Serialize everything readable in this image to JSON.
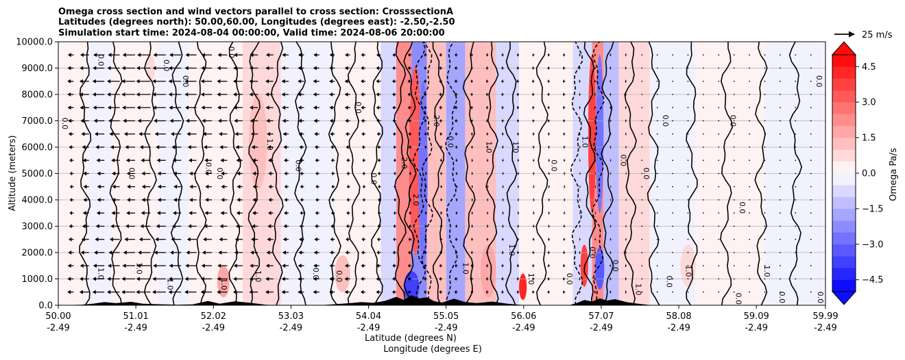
{
  "chart_data": {
    "type": "heatmap",
    "title_lines": [
      "Omega cross section and wind vectors parallel to cross section: CrosssectionA",
      "Latitudes (degrees north): 50.00,60.00, Longitudes (degrees east): -2.50,-2.50",
      "Simulation start time: 2024-08-04 00:00:00, Valid time: 2024-08-06 20:00:00"
    ],
    "xlabel_lines": [
      "Latitude (degrees N)",
      "Longitude (degrees E)"
    ],
    "ylabel": "Altitude (meters)",
    "colorbar_label": "Omega Pa/s",
    "quiver_key_label": "25 m/s",
    "x_range": [
      50.0,
      59.99
    ],
    "ylim": [
      0,
      10000
    ],
    "grid": "horizontal",
    "x_ticks": [
      {
        "lat": "50.00",
        "lon": "-2.49",
        "v": 50.0
      },
      {
        "lat": "51.01",
        "lon": "-2.49",
        "v": 51.01
      },
      {
        "lat": "52.02",
        "lon": "-2.49",
        "v": 52.02
      },
      {
        "lat": "53.03",
        "lon": "-2.49",
        "v": 53.03
      },
      {
        "lat": "54.04",
        "lon": "-2.49",
        "v": 54.04
      },
      {
        "lat": "55.05",
        "lon": "-2.49",
        "v": 55.05
      },
      {
        "lat": "56.06",
        "lon": "-2.49",
        "v": 56.06
      },
      {
        "lat": "57.07",
        "lon": "-2.49",
        "v": 57.07
      },
      {
        "lat": "58.08",
        "lon": "-2.49",
        "v": 58.08
      },
      {
        "lat": "59.09",
        "lon": "-2.49",
        "v": 59.09
      },
      {
        "lat": "59.99",
        "lon": "-2.49",
        "v": 59.99
      }
    ],
    "y_ticks": [
      {
        "label": "0.0",
        "v": 0
      },
      {
        "label": "1000.0",
        "v": 1000
      },
      {
        "label": "2000.0",
        "v": 2000
      },
      {
        "label": "3000.0",
        "v": 3000
      },
      {
        "label": "4000.0",
        "v": 4000
      },
      {
        "label": "5000.0",
        "v": 5000
      },
      {
        "label": "6000.0",
        "v": 6000
      },
      {
        "label": "7000.0",
        "v": 7000
      },
      {
        "label": "8000.0",
        "v": 8000
      },
      {
        "label": "9000.0",
        "v": 9000
      },
      {
        "label": "10000.0",
        "v": 10000
      }
    ],
    "colorbar": {
      "vmin": -5.0,
      "vmax": 5.0,
      "cmap": "bwr",
      "ticks": [
        {
          "label": "−4.5",
          "v": -4.5
        },
        {
          "label": "−3.0",
          "v": -3.0
        },
        {
          "label": "−1.5",
          "v": -1.5
        },
        {
          "label": "0.0",
          "v": 0.0
        },
        {
          "label": "1.5",
          "v": 1.5
        },
        {
          "label": "3.0",
          "v": 3.0
        },
        {
          "label": "4.5",
          "v": 4.5
        }
      ]
    },
    "omega_bands": [
      {
        "x0": 50.0,
        "x1": 50.4,
        "omega": 0.1
      },
      {
        "x0": 50.4,
        "x1": 50.7,
        "omega": -0.2
      },
      {
        "x0": 50.7,
        "x1": 51.3,
        "omega": 0.2
      },
      {
        "x0": 51.3,
        "x1": 51.7,
        "omega": -0.3
      },
      {
        "x0": 51.7,
        "x1": 52.4,
        "omega": 0.3
      },
      {
        "x0": 52.4,
        "x1": 52.9,
        "omega": 0.6
      },
      {
        "x0": 52.9,
        "x1": 53.6,
        "omega": -0.2
      },
      {
        "x0": 53.6,
        "x1": 54.2,
        "omega": 0.2
      },
      {
        "x0": 54.2,
        "x1": 54.4,
        "omega": -0.8
      },
      {
        "x0": 54.4,
        "x1": 54.6,
        "omega": 2.0
      },
      {
        "x0": 54.6,
        "x1": 54.8,
        "omega": -2.2
      },
      {
        "x0": 54.8,
        "x1": 55.05,
        "omega": 1.4
      },
      {
        "x0": 55.05,
        "x1": 55.3,
        "omega": -1.6
      },
      {
        "x0": 55.3,
        "x1": 55.7,
        "omega": 1.0
      },
      {
        "x0": 55.7,
        "x1": 56.0,
        "omega": -0.6
      },
      {
        "x0": 56.0,
        "x1": 56.7,
        "omega": 0.4
      },
      {
        "x0": 56.7,
        "x1": 56.95,
        "omega": -0.6
      },
      {
        "x0": 56.95,
        "x1": 57.1,
        "omega": 2.2
      },
      {
        "x0": 57.1,
        "x1": 57.3,
        "omega": -1.2
      },
      {
        "x0": 57.3,
        "x1": 57.7,
        "omega": 0.5
      },
      {
        "x0": 57.7,
        "x1": 58.3,
        "omega": -0.3
      },
      {
        "x0": 58.3,
        "x1": 59.2,
        "omega": 0.2
      },
      {
        "x0": 59.2,
        "x1": 59.99,
        "omega": -0.1
      }
    ],
    "omega_blobs": [
      {
        "x": 52.6,
        "y": 6200,
        "rx": 0.12,
        "ry": 1800,
        "omega": 1.2
      },
      {
        "x": 51.2,
        "y": 9000,
        "rx": 0.06,
        "ry": 500,
        "omega": 0.9
      },
      {
        "x": 54.65,
        "y": 5500,
        "rx": 0.08,
        "ry": 3600,
        "omega": 3.0
      },
      {
        "x": 54.75,
        "y": 5000,
        "rx": 0.06,
        "ry": 3500,
        "omega": -3.0
      },
      {
        "x": 54.6,
        "y": 700,
        "rx": 0.1,
        "ry": 600,
        "omega": -4.0
      },
      {
        "x": 56.95,
        "y": 6500,
        "rx": 0.05,
        "ry": 3000,
        "omega": 3.5
      },
      {
        "x": 57.05,
        "y": 6500,
        "rx": 0.05,
        "ry": 3000,
        "omega": -3.0
      },
      {
        "x": 56.85,
        "y": 1500,
        "rx": 0.05,
        "ry": 800,
        "omega": 3.5
      },
      {
        "x": 57.05,
        "y": 1400,
        "rx": 0.06,
        "ry": 800,
        "omega": -3.5
      },
      {
        "x": 58.2,
        "y": 1500,
        "rx": 0.1,
        "ry": 800,
        "omega": 0.9
      },
      {
        "x": 53.7,
        "y": 1200,
        "rx": 0.1,
        "ry": 700,
        "omega": 1.2
      },
      {
        "x": 52.15,
        "y": 900,
        "rx": 0.08,
        "ry": 600,
        "omega": 1.5
      },
      {
        "x": 55.6,
        "y": 1300,
        "rx": 0.1,
        "ry": 1000,
        "omega": 1.6
      },
      {
        "x": 56.05,
        "y": 700,
        "rx": 0.05,
        "ry": 500,
        "omega": 4.0
      }
    ],
    "contours": [
      {
        "x": 50.35,
        "level": 0.0,
        "dashed": false
      },
      {
        "x": 50.75,
        "level": 0.0,
        "dashed": false
      },
      {
        "x": 51.2,
        "level": 0.0,
        "dashed": false
      },
      {
        "x": 51.55,
        "level": 0.0,
        "dashed": false
      },
      {
        "x": 51.85,
        "level": 0.0,
        "dashed": false
      },
      {
        "x": 52.3,
        "level": 0.0,
        "dashed": false
      },
      {
        "x": 52.55,
        "level": 1.0,
        "dashed": false
      },
      {
        "x": 52.85,
        "level": 0.0,
        "dashed": false
      },
      {
        "x": 53.15,
        "level": 0.0,
        "dashed": false
      },
      {
        "x": 53.6,
        "level": 0.0,
        "dashed": false
      },
      {
        "x": 53.85,
        "level": 0.0,
        "dashed": false
      },
      {
        "x": 54.15,
        "level": 0.0,
        "dashed": false
      },
      {
        "x": 54.45,
        "level": 1.0,
        "dashed": false
      },
      {
        "x": 54.58,
        "level": 2.0,
        "dashed": false
      },
      {
        "x": 54.7,
        "level": -1.0,
        "dashed": true
      },
      {
        "x": 54.8,
        "level": -2.0,
        "dashed": true
      },
      {
        "x": 54.95,
        "level": 2.0,
        "dashed": false
      },
      {
        "x": 55.12,
        "level": -1.0,
        "dashed": true
      },
      {
        "x": 55.35,
        "level": 1.0,
        "dashed": false
      },
      {
        "x": 55.65,
        "level": 1.0,
        "dashed": false
      },
      {
        "x": 55.9,
        "level": 0.0,
        "dashed": false
      },
      {
        "x": 56.3,
        "level": 0.0,
        "dashed": false
      },
      {
        "x": 56.75,
        "level": -1.0,
        "dashed": true
      },
      {
        "x": 56.92,
        "level": 1.0,
        "dashed": false
      },
      {
        "x": 57.03,
        "level": -2.0,
        "dashed": true
      },
      {
        "x": 57.15,
        "level": 1.0,
        "dashed": false
      },
      {
        "x": 57.45,
        "level": 0.0,
        "dashed": false
      },
      {
        "x": 57.75,
        "level": 0.0,
        "dashed": false
      },
      {
        "x": 58.25,
        "level": 0.0,
        "dashed": false
      },
      {
        "x": 58.7,
        "level": 0.0,
        "dashed": false
      },
      {
        "x": 59.15,
        "level": 0.0,
        "dashed": false
      },
      {
        "x": 59.6,
        "level": 0.0,
        "dashed": false
      }
    ],
    "contour_labels": [
      {
        "text": "0.0",
        "x": 50.08,
        "y": 6900
      },
      {
        "text": "0.0",
        "x": 50.55,
        "y": 9300
      },
      {
        "text": "0.0",
        "x": 50.95,
        "y": 5000
      },
      {
        "text": "0.0",
        "x": 51.4,
        "y": 9100
      },
      {
        "text": "0.0",
        "x": 51.65,
        "y": 8500
      },
      {
        "text": "0.0",
        "x": 51.95,
        "y": 5200
      },
      {
        "text": "0.0",
        "x": 52.1,
        "y": 5000
      },
      {
        "text": "0.0",
        "x": 52.25,
        "y": 9600
      },
      {
        "text": "1.0",
        "x": 52.75,
        "y": 6100
      },
      {
        "text": "0.0",
        "x": 53.12,
        "y": 5300
      },
      {
        "text": "0.0",
        "x": 53.9,
        "y": 7500
      },
      {
        "text": "0.0",
        "x": 54.1,
        "y": 4800
      },
      {
        "text": "2.0",
        "x": 54.5,
        "y": 5400
      },
      {
        "text": "2.0",
        "x": 54.65,
        "y": 4000
      },
      {
        "text": "2.0",
        "x": 54.92,
        "y": 7000
      },
      {
        "text": "0.0",
        "x": 55.1,
        "y": 6200
      },
      {
        "text": "1.0",
        "x": 55.6,
        "y": 6000
      },
      {
        "text": "1.0",
        "x": 55.95,
        "y": 6000
      },
      {
        "text": "0.0",
        "x": 56.45,
        "y": 5300
      },
      {
        "text": "1.0",
        "x": 56.85,
        "y": 6200
      },
      {
        "text": "0.0",
        "x": 57.35,
        "y": 5500
      },
      {
        "text": "0.0",
        "x": 57.65,
        "y": 5000
      },
      {
        "text": "0.0",
        "x": 57.9,
        "y": 7000
      },
      {
        "text": "0.0",
        "x": 58.78,
        "y": 7000
      },
      {
        "text": "0.0",
        "x": 59.9,
        "y": 8500
      },
      {
        "text": "0.0",
        "x": 58.9,
        "y": 3700
      },
      {
        "text": "1.0",
        "x": 50.55,
        "y": 1200
      },
      {
        "text": "1.0",
        "x": 51.05,
        "y": 1400
      },
      {
        "text": "1.0",
        "x": 51.45,
        "y": 800
      },
      {
        "text": "1.0",
        "x": 52.15,
        "y": 800
      },
      {
        "text": "1.0",
        "x": 52.6,
        "y": 1100
      },
      {
        "text": "0.0",
        "x": 53.35,
        "y": 1200
      },
      {
        "text": "0.0",
        "x": 53.65,
        "y": 1100
      },
      {
        "text": "1.0",
        "x": 55.3,
        "y": 1400
      },
      {
        "text": "1.0",
        "x": 55.9,
        "y": 2100
      },
      {
        "text": "1.0",
        "x": 56.15,
        "y": 1000
      },
      {
        "text": "0.0",
        "x": 56.65,
        "y": 1000
      },
      {
        "text": "0.0",
        "x": 57.25,
        "y": 1500
      },
      {
        "text": "1.0",
        "x": 57.55,
        "y": 600
      },
      {
        "text": "0.0",
        "x": 57.95,
        "y": 900
      },
      {
        "text": "1.0",
        "x": 58.2,
        "y": 1300
      },
      {
        "text": "1.0",
        "x": 59.22,
        "y": 1300
      },
      {
        "text": "0.0",
        "x": 59.42,
        "y": 300
      },
      {
        "text": "0.0",
        "x": 59.92,
        "y": 300
      },
      {
        "text": "0.0",
        "x": 58.85,
        "y": 250
      },
      {
        "text": "0.0",
        "x": 56.95,
        "y": 2000
      }
    ],
    "wind_vector_columns": [
      {
        "x": 50.0,
        "u": -2
      },
      {
        "x": 50.2,
        "u": -8
      },
      {
        "x": 50.4,
        "u": -12
      },
      {
        "x": 50.6,
        "u": -15
      },
      {
        "x": 50.8,
        "u": -16
      },
      {
        "x": 51.0,
        "u": -17
      },
      {
        "x": 51.2,
        "u": -18
      },
      {
        "x": 51.4,
        "u": -17
      },
      {
        "x": 51.6,
        "u": -16
      },
      {
        "x": 51.8,
        "u": -15
      },
      {
        "x": 52.0,
        "u": -14
      },
      {
        "x": 52.2,
        "u": -13
      },
      {
        "x": 52.4,
        "u": -12
      },
      {
        "x": 52.6,
        "u": -11
      },
      {
        "x": 52.8,
        "u": -10
      },
      {
        "x": 53.0,
        "u": -9
      },
      {
        "x": 53.2,
        "u": -8
      },
      {
        "x": 53.4,
        "u": -8
      },
      {
        "x": 53.6,
        "u": -7
      },
      {
        "x": 53.8,
        "u": -7
      },
      {
        "x": 54.0,
        "u": -6
      },
      {
        "x": 54.2,
        "u": -6
      },
      {
        "x": 54.4,
        "u": -5
      },
      {
        "x": 54.6,
        "u": -5
      },
      {
        "x": 54.8,
        "u": -4
      },
      {
        "x": 55.0,
        "u": -4
      },
      {
        "x": 55.2,
        "u": -4
      },
      {
        "x": 55.4,
        "u": -3
      },
      {
        "x": 55.6,
        "u": -3
      },
      {
        "x": 55.8,
        "u": -3
      },
      {
        "x": 56.0,
        "u": -3
      },
      {
        "x": 56.2,
        "u": -3
      },
      {
        "x": 56.4,
        "u": -3
      },
      {
        "x": 56.6,
        "u": -3
      },
      {
        "x": 56.8,
        "u": -2
      },
      {
        "x": 57.0,
        "u": -2
      },
      {
        "x": 57.2,
        "u": -2
      },
      {
        "x": 57.4,
        "u": -2
      },
      {
        "x": 57.6,
        "u": -1
      },
      {
        "x": 57.8,
        "u": -1
      },
      {
        "x": 58.0,
        "u": -1
      },
      {
        "x": 58.2,
        "u": -1
      },
      {
        "x": 58.4,
        "u": -1
      },
      {
        "x": 58.6,
        "u": 0
      },
      {
        "x": 58.8,
        "u": 0
      },
      {
        "x": 59.0,
        "u": 0
      },
      {
        "x": 59.2,
        "u": 0
      },
      {
        "x": 59.4,
        "u": 0
      },
      {
        "x": 59.6,
        "u": 0
      },
      {
        "x": 59.8,
        "u": 0
      }
    ],
    "wind_vector_levels": [
      500,
      1000,
      1500,
      2000,
      2500,
      3000,
      3500,
      4000,
      4500,
      5000,
      5500,
      6000,
      6500,
      7000,
      7500,
      8000,
      8500,
      9000,
      9500
    ],
    "quiver_key_speed": 25,
    "terrain": [
      {
        "x": 50.0,
        "h": 0
      },
      {
        "x": 50.3,
        "h": 20
      },
      {
        "x": 50.45,
        "h": 60
      },
      {
        "x": 50.6,
        "h": 120
      },
      {
        "x": 50.75,
        "h": 80
      },
      {
        "x": 50.95,
        "h": 130
      },
      {
        "x": 51.1,
        "h": 60
      },
      {
        "x": 51.3,
        "h": 40
      },
      {
        "x": 51.55,
        "h": 20
      },
      {
        "x": 51.75,
        "h": 30
      },
      {
        "x": 51.95,
        "h": 160
      },
      {
        "x": 52.1,
        "h": 60
      },
      {
        "x": 52.3,
        "h": 150
      },
      {
        "x": 52.5,
        "h": 90
      },
      {
        "x": 52.7,
        "h": 20
      },
      {
        "x": 52.9,
        "h": 0
      },
      {
        "x": 53.2,
        "h": 0
      },
      {
        "x": 53.45,
        "h": 10
      },
      {
        "x": 53.6,
        "h": 40
      },
      {
        "x": 53.8,
        "h": 80
      },
      {
        "x": 53.95,
        "h": 120
      },
      {
        "x": 54.1,
        "h": 90
      },
      {
        "x": 54.25,
        "h": 160
      },
      {
        "x": 54.4,
        "h": 320
      },
      {
        "x": 54.5,
        "h": 200
      },
      {
        "x": 54.6,
        "h": 380
      },
      {
        "x": 54.7,
        "h": 260
      },
      {
        "x": 54.8,
        "h": 300
      },
      {
        "x": 54.9,
        "h": 150
      },
      {
        "x": 55.0,
        "h": 100
      },
      {
        "x": 55.15,
        "h": 250
      },
      {
        "x": 55.3,
        "h": 120
      },
      {
        "x": 55.45,
        "h": 80
      },
      {
        "x": 55.65,
        "h": 140
      },
      {
        "x": 55.85,
        "h": 60
      },
      {
        "x": 56.0,
        "h": 20
      },
      {
        "x": 56.1,
        "h": 0
      },
      {
        "x": 56.65,
        "h": 0
      },
      {
        "x": 56.75,
        "h": 80
      },
      {
        "x": 56.85,
        "h": 200
      },
      {
        "x": 56.95,
        "h": 140
      },
      {
        "x": 57.05,
        "h": 260
      },
      {
        "x": 57.15,
        "h": 180
      },
      {
        "x": 57.25,
        "h": 230
      },
      {
        "x": 57.4,
        "h": 120
      },
      {
        "x": 57.55,
        "h": 60
      },
      {
        "x": 57.7,
        "h": 10
      },
      {
        "x": 57.8,
        "h": 0
      },
      {
        "x": 59.99,
        "h": 0
      }
    ]
  }
}
